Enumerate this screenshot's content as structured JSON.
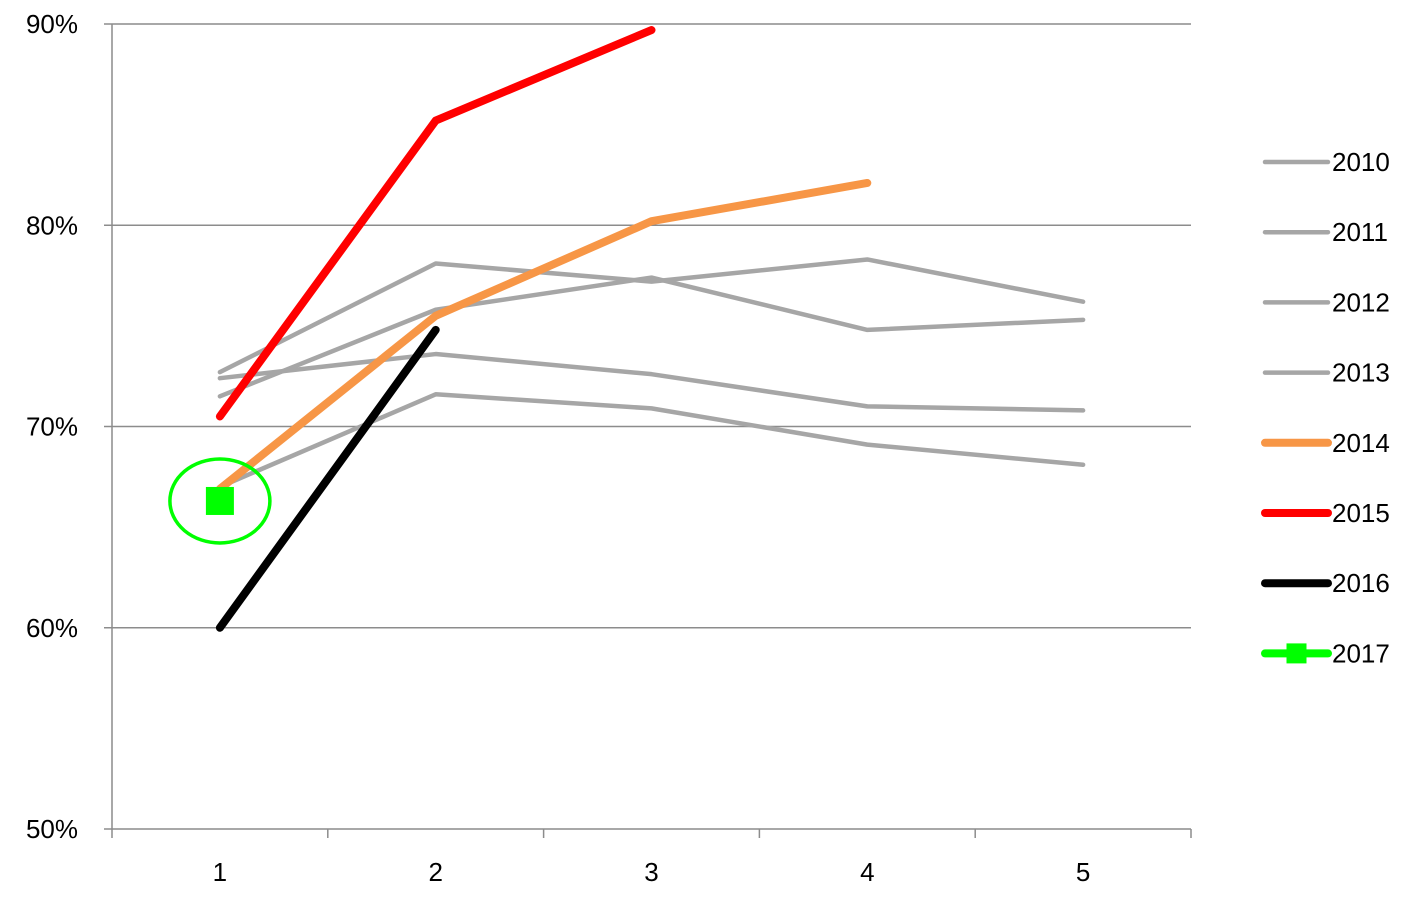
{
  "chart_data": {
    "type": "line",
    "title": "",
    "xlabel": "",
    "ylabel": "",
    "categories": [
      "1",
      "2",
      "3",
      "4",
      "5"
    ],
    "x": [
      1,
      2,
      3,
      4,
      5
    ],
    "ylim": [
      0.5,
      0.9
    ],
    "y_ticks": [
      0.5,
      0.6,
      0.7,
      0.8,
      0.9
    ],
    "y_tick_labels": [
      "50%",
      "60%",
      "70%",
      "80%",
      "90%"
    ],
    "y_tick_format": "percent",
    "grid": true,
    "legend_position": "right",
    "series": [
      {
        "name": "2010",
        "color": "#a6a6a6",
        "values": [
          0.727,
          0.781,
          0.772,
          0.783,
          0.762
        ]
      },
      {
        "name": "2011",
        "color": "#a6a6a6",
        "values": [
          0.715,
          0.758,
          0.774,
          0.748,
          0.753
        ]
      },
      {
        "name": "2012",
        "color": "#a6a6a6",
        "values": [
          0.724,
          0.736,
          0.726,
          0.71,
          0.708
        ]
      },
      {
        "name": "2013",
        "color": "#a6a6a6",
        "values": [
          0.67,
          0.716,
          0.709,
          0.691,
          0.681
        ]
      },
      {
        "name": "2014",
        "color": "#f79646",
        "values": [
          0.669,
          0.755,
          0.802,
          0.821,
          null
        ]
      },
      {
        "name": "2015",
        "color": "#ff0000",
        "values": [
          0.705,
          0.852,
          0.897,
          null,
          null
        ]
      },
      {
        "name": "2016",
        "color": "#000000",
        "values": [
          0.6,
          0.748,
          null,
          null,
          null
        ]
      },
      {
        "name": "2017",
        "color": "#00ff00",
        "marker": "square",
        "values": [
          0.663,
          null,
          null,
          null,
          null
        ]
      }
    ],
    "annotations": [
      {
        "type": "circle",
        "color": "#00ff00",
        "x": 1,
        "y": 0.663,
        "target_series": "2017"
      }
    ]
  }
}
